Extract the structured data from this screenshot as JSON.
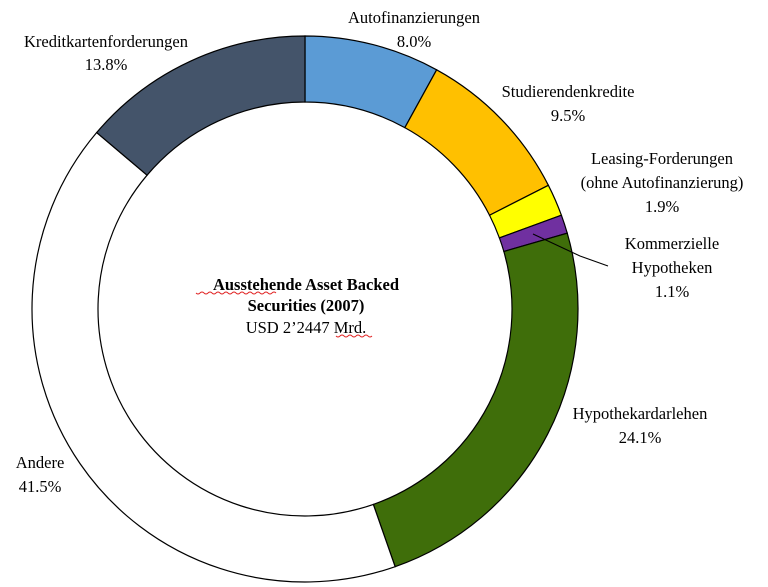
{
  "chart_data": {
    "type": "pie",
    "style": "donut",
    "center": {
      "title_line1": "Ausstehende Asset Backed",
      "title_line2": "Securities (2007)",
      "subtitle": "USD 2’2447 Mrd."
    },
    "slices": [
      {
        "label": [
          "Autofinanzierungen"
        ],
        "value_label": "8.0%",
        "value": 8.0,
        "color": "#5b9bd5"
      },
      {
        "label": [
          "Studierendenkredite"
        ],
        "value_label": "9.5%",
        "value": 9.5,
        "color": "#ffc000"
      },
      {
        "label": [
          "Leasing-Forderungen",
          "(ohne Autofinanzierung)"
        ],
        "value_label": "1.9%",
        "value": 1.9,
        "color": "#ffff00"
      },
      {
        "label": [
          "Kommerzielle",
          "Hypotheken"
        ],
        "value_label": "1.1%",
        "value": 1.1,
        "color": "#7030a0"
      },
      {
        "label": [
          "Hypothekardarlehen"
        ],
        "value_label": "24.1%",
        "value": 24.1,
        "color": "#3f6e0a"
      },
      {
        "label": [
          "Andere"
        ],
        "value_label": "41.5%",
        "value": 41.5,
        "color": "#ffffff"
      },
      {
        "label": [
          "Kreditkartenforderungen"
        ],
        "value_label": "13.8%",
        "value": 13.8,
        "color": "#44546a"
      }
    ]
  }
}
